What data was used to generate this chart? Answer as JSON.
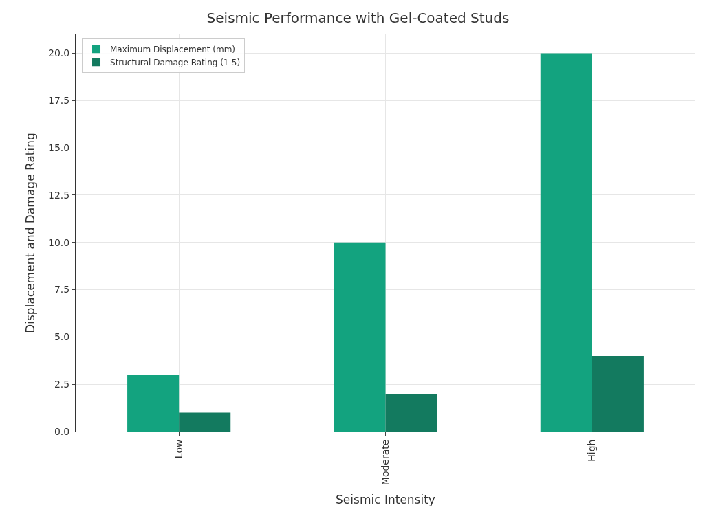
{
  "chart_data": {
    "type": "bar",
    "title": "Seismic Performance with Gel-Coated Studs",
    "xlabel": "Seismic Intensity",
    "ylabel": "Displacement and Damage Rating",
    "categories": [
      "Low",
      "Moderate",
      "High"
    ],
    "series": [
      {
        "name": "Maximum Displacement (mm)",
        "color": "#13a37f",
        "values": [
          3,
          10,
          20
        ]
      },
      {
        "name": "Structural Damage Rating (1-5)",
        "color": "#137a5f",
        "values": [
          1,
          2,
          4
        ]
      }
    ],
    "ylim": [
      0,
      21
    ],
    "yticks": [
      {
        "value": 0,
        "label": "0.0"
      },
      {
        "value": 2.5,
        "label": "2.5"
      },
      {
        "value": 5,
        "label": "5.0"
      },
      {
        "value": 7.5,
        "label": "7.5"
      },
      {
        "value": 10,
        "label": "10.0"
      },
      {
        "value": 12.5,
        "label": "12.5"
      },
      {
        "value": 15,
        "label": "15.0"
      },
      {
        "value": 17.5,
        "label": "17.5"
      },
      {
        "value": 20,
        "label": "20.0"
      }
    ],
    "grid": true,
    "legend": "top left"
  }
}
